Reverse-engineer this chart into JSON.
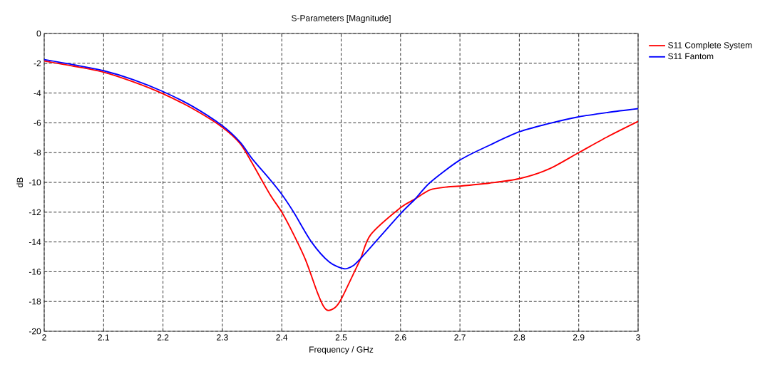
{
  "chart_data": {
    "type": "line",
    "title": "S-Parameters [Magnitude]",
    "xlabel": "Frequency / GHz",
    "ylabel": "dB",
    "xlim": [
      2,
      3
    ],
    "ylim": [
      -20,
      0
    ],
    "xticks": [
      2,
      2.1,
      2.2,
      2.3,
      2.4,
      2.5,
      2.6,
      2.7,
      2.8,
      2.9,
      3
    ],
    "yticks": [
      -20,
      -18,
      -16,
      -14,
      -12,
      -10,
      -8,
      -6,
      -4,
      -2,
      0
    ],
    "grid": true,
    "legend": "top right",
    "marker": "none",
    "line_style": "solid",
    "series": [
      {
        "name": "S11 Complete System",
        "color": "#ff0000",
        "x": [
          2,
          2.05,
          2.1,
          2.15,
          2.2,
          2.25,
          2.3,
          2.33,
          2.35,
          2.38,
          2.4,
          2.42,
          2.44,
          2.46,
          2.47,
          2.478,
          2.49,
          2.5,
          2.52,
          2.533,
          2.55,
          2.6,
          2.625,
          2.65,
          2.68,
          2.7,
          2.75,
          2.8,
          2.85,
          2.9,
          2.95,
          3
        ],
        "values": [
          -1.85,
          -2.2,
          -2.6,
          -3.25,
          -4.05,
          -5.05,
          -6.3,
          -7.4,
          -8.7,
          -10.8,
          -12.0,
          -13.5,
          -15.2,
          -17.4,
          -18.3,
          -18.6,
          -18.4,
          -17.85,
          -16.2,
          -15.1,
          -13.5,
          -11.7,
          -11.1,
          -10.5,
          -10.3,
          -10.25,
          -10.05,
          -9.75,
          -9.1,
          -8.0,
          -6.9,
          -5.9
        ]
      },
      {
        "name": "S11 Fantom",
        "color": "#0000ff",
        "x": [
          2,
          2.05,
          2.1,
          2.15,
          2.2,
          2.25,
          2.3,
          2.33,
          2.35,
          2.38,
          2.4,
          2.42,
          2.45,
          2.48,
          2.505,
          2.52,
          2.533,
          2.55,
          2.6,
          2.625,
          2.65,
          2.7,
          2.75,
          2.8,
          2.85,
          2.9,
          2.95,
          3
        ],
        "values": [
          -1.75,
          -2.1,
          -2.5,
          -3.1,
          -3.9,
          -4.9,
          -6.2,
          -7.3,
          -8.4,
          -9.8,
          -10.8,
          -12.0,
          -14.0,
          -15.35,
          -15.8,
          -15.6,
          -15.1,
          -14.35,
          -12.1,
          -11.1,
          -10.0,
          -8.5,
          -7.5,
          -6.6,
          -6.05,
          -5.6,
          -5.3,
          -5.05
        ]
      }
    ]
  }
}
